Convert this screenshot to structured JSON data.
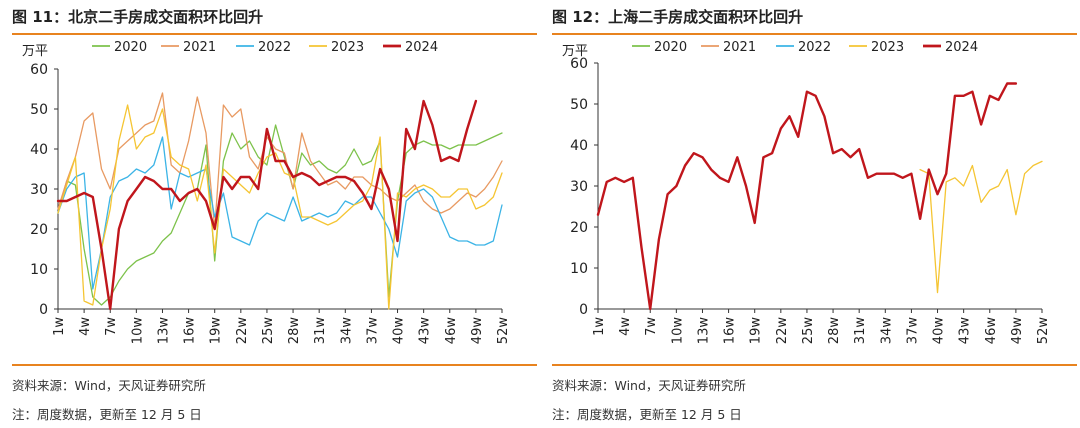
{
  "panels": [
    {
      "title": "图 11：北京二手房成交面积环比回升",
      "source": "资料来源：Wind，天风证券研究所",
      "note": "注：周度数据，更新至 12 月 5 日",
      "chart_data": {
        "type": "line",
        "ylabel": "万平",
        "ylim": [
          0,
          60
        ],
        "yticks": [
          0,
          10,
          20,
          30,
          40,
          50,
          60
        ],
        "xlim": [
          1,
          52
        ],
        "x_tick_labels": [
          "1w",
          "4w",
          "7w",
          "10w",
          "13w",
          "16w",
          "19w",
          "22w",
          "25w",
          "28w",
          "31w",
          "34w",
          "37w",
          "40w",
          "43w",
          "46w",
          "49w",
          "52w"
        ],
        "legend": "top",
        "grid": false,
        "series": [
          {
            "name": "2020",
            "color": "#7dc24b",
            "width": 1.3,
            "x": [
              1,
              2,
              3,
              4,
              5,
              6,
              7,
              8,
              9,
              10,
              11,
              12,
              13,
              14,
              15,
              16,
              17,
              18,
              19,
              20,
              21,
              22,
              23,
              24,
              25,
              26,
              27,
              28,
              29,
              30,
              31,
              32,
              33,
              34,
              35,
              36,
              37,
              38,
              39,
              40,
              41,
              42,
              43,
              44,
              45,
              46,
              47,
              48,
              49,
              50,
              51,
              52
            ],
            "values": [
              24,
              32,
              31,
              15,
              3,
              1,
              3,
              7,
              10,
              12,
              13,
              14,
              17,
              19,
              24,
              29,
              30,
              41,
              12,
              37,
              44,
              40,
              42,
              38,
              36,
              46,
              38,
              30,
              39,
              36,
              37,
              35,
              34,
              36,
              40,
              36,
              37,
              42,
              3,
              27,
              39,
              41,
              42,
              41,
              41,
              40,
              41,
              41,
              41,
              42,
              43,
              44
            ]
          },
          {
            "name": "2021",
            "color": "#e89a62",
            "width": 1.3,
            "x": [
              1,
              2,
              3,
              4,
              5,
              6,
              7,
              8,
              9,
              10,
              11,
              12,
              13,
              14,
              15,
              16,
              17,
              18,
              19,
              20,
              21,
              22,
              23,
              24,
              25,
              26,
              27,
              28,
              29,
              30,
              31,
              32,
              33,
              34,
              35,
              36,
              37,
              38,
              39,
              40,
              41,
              42,
              43,
              44,
              45,
              46,
              47,
              48,
              49,
              50,
              51,
              52
            ],
            "values": [
              25,
              32,
              38,
              47,
              49,
              35,
              30,
              40,
              42,
              44,
              46,
              47,
              54,
              36,
              34,
              42,
              53,
              44,
              20,
              51,
              48,
              50,
              38,
              35,
              43,
              40,
              39,
              30,
              44,
              37,
              34,
              31,
              32,
              30,
              33,
              33,
              31,
              30,
              28,
              27,
              29,
              31,
              27,
              25,
              24,
              25,
              27,
              29,
              28,
              30,
              33,
              37
            ]
          },
          {
            "name": "2022",
            "color": "#3cb4e6",
            "width": 1.3,
            "x": [
              1,
              2,
              3,
              4,
              5,
              6,
              7,
              8,
              9,
              10,
              11,
              12,
              13,
              14,
              15,
              16,
              17,
              18,
              19,
              20,
              21,
              22,
              23,
              24,
              25,
              26,
              27,
              28,
              29,
              30,
              31,
              32,
              33,
              34,
              35,
              36,
              37,
              38,
              39,
              40,
              41,
              42,
              43,
              44,
              45,
              46,
              47,
              48,
              49,
              50,
              51,
              52
            ],
            "values": [
              24,
              30,
              33,
              34,
              5,
              15,
              28,
              32,
              33,
              35,
              34,
              36,
              43,
              25,
              34,
              33,
              34,
              35,
              23,
              29,
              18,
              17,
              16,
              22,
              24,
              23,
              22,
              28,
              22,
              23,
              24,
              23,
              24,
              27,
              26,
              28,
              28,
              24,
              20,
              13,
              27,
              29,
              30,
              28,
              23,
              18,
              17,
              17,
              16,
              16,
              17,
              26
            ]
          },
          {
            "name": "2023",
            "color": "#f5c533",
            "width": 1.3,
            "x": [
              1,
              2,
              3,
              4,
              5,
              6,
              7,
              8,
              9,
              10,
              11,
              12,
              13,
              14,
              15,
              16,
              17,
              18,
              19,
              20,
              21,
              22,
              23,
              24,
              25,
              26,
              27,
              28,
              29,
              30,
              31,
              32,
              33,
              34,
              35,
              36,
              37,
              38,
              39,
              40,
              41,
              42,
              43,
              44,
              45,
              46,
              47,
              48,
              49,
              50,
              51,
              52
            ],
            "values": [
              24,
              31,
              38,
              2,
              1,
              15,
              25,
              42,
              51,
              40,
              43,
              44,
              50,
              38,
              36,
              35,
              27,
              36,
              14,
              35,
              33,
              31,
              29,
              34,
              38,
              39,
              34,
              33,
              23,
              23,
              22,
              21,
              22,
              24,
              26,
              27,
              31,
              43,
              0,
              29,
              28,
              30,
              31,
              30,
              28,
              28,
              30,
              30,
              25,
              26,
              28,
              34
            ]
          },
          {
            "name": "2024",
            "color": "#c0161c",
            "width": 2.4,
            "x": [
              1,
              2,
              3,
              4,
              5,
              6,
              7,
              8,
              9,
              10,
              11,
              12,
              13,
              14,
              15,
              16,
              17,
              18,
              19,
              20,
              21,
              22,
              23,
              24,
              25,
              26,
              27,
              28,
              29,
              30,
              31,
              32,
              33,
              34,
              35,
              36,
              37,
              38,
              39,
              40,
              41,
              42,
              43,
              44,
              45,
              46,
              47,
              48,
              49
            ],
            "values": [
              27,
              27,
              28,
              29,
              28,
              15,
              0,
              20,
              27,
              30,
              33,
              32,
              30,
              30,
              27,
              29,
              30,
              27,
              20,
              33,
              30,
              33,
              33,
              30,
              45,
              37,
              37,
              33,
              34,
              33,
              31,
              32,
              33,
              33,
              32,
              29,
              25,
              35,
              30,
              17,
              45,
              40,
              52,
              46,
              37,
              38,
              37,
              45,
              52
            ]
          }
        ]
      }
    },
    {
      "title": "图 12：上海二手房成交面积环比回升",
      "source": "资料来源：Wind，天风证券研究所",
      "note": "注：周度数据，更新至 12 月 5 日",
      "chart_data": {
        "type": "line",
        "ylabel": "万平",
        "ylim": [
          0,
          60
        ],
        "yticks": [
          0,
          10,
          20,
          30,
          40,
          50,
          60
        ],
        "xlim": [
          1,
          52
        ],
        "x_tick_labels": [
          "1w",
          "4w",
          "7w",
          "10w",
          "13w",
          "16w",
          "19w",
          "22w",
          "25w",
          "28w",
          "31w",
          "34w",
          "37w",
          "40w",
          "43w",
          "46w",
          "49w",
          "52w"
        ],
        "legend": "top",
        "grid": false,
        "series": [
          {
            "name": "2020",
            "color": "#7dc24b",
            "width": 1.3,
            "x": [],
            "values": []
          },
          {
            "name": "2021",
            "color": "#e89a62",
            "width": 1.3,
            "x": [],
            "values": []
          },
          {
            "name": "2022",
            "color": "#3cb4e6",
            "width": 1.3,
            "x": [],
            "values": []
          },
          {
            "name": "2023",
            "color": "#f5c533",
            "width": 1.3,
            "x": [
              38,
              39,
              40,
              41,
              42,
              43,
              44,
              45,
              46,
              47,
              48,
              49,
              50,
              51,
              52
            ],
            "values": [
              34,
              33,
              4,
              31,
              32,
              30,
              35,
              26,
              29,
              30,
              34,
              23,
              33,
              35,
              36
            ]
          },
          {
            "name": "2024",
            "color": "#c0161c",
            "width": 2.4,
            "x": [
              1,
              2,
              3,
              4,
              5,
              6,
              7,
              8,
              9,
              10,
              11,
              12,
              13,
              14,
              15,
              16,
              17,
              18,
              19,
              20,
              21,
              22,
              23,
              24,
              25,
              26,
              27,
              28,
              29,
              30,
              31,
              32,
              33,
              34,
              35,
              36,
              37,
              38,
              39,
              40,
              41,
              42,
              43,
              44,
              45,
              46,
              47,
              48,
              49
            ],
            "values": [
              23,
              31,
              32,
              31,
              32,
              15,
              0,
              17,
              28,
              30,
              35,
              38,
              37,
              34,
              32,
              31,
              37,
              30,
              21,
              37,
              38,
              44,
              47,
              42,
              53,
              52,
              47,
              38,
              39,
              37,
              39,
              32,
              33,
              33,
              33,
              32,
              33,
              22,
              34,
              28,
              33,
              52,
              52,
              53,
              45,
              52,
              51,
              55,
              55
            ]
          }
        ]
      }
    }
  ]
}
